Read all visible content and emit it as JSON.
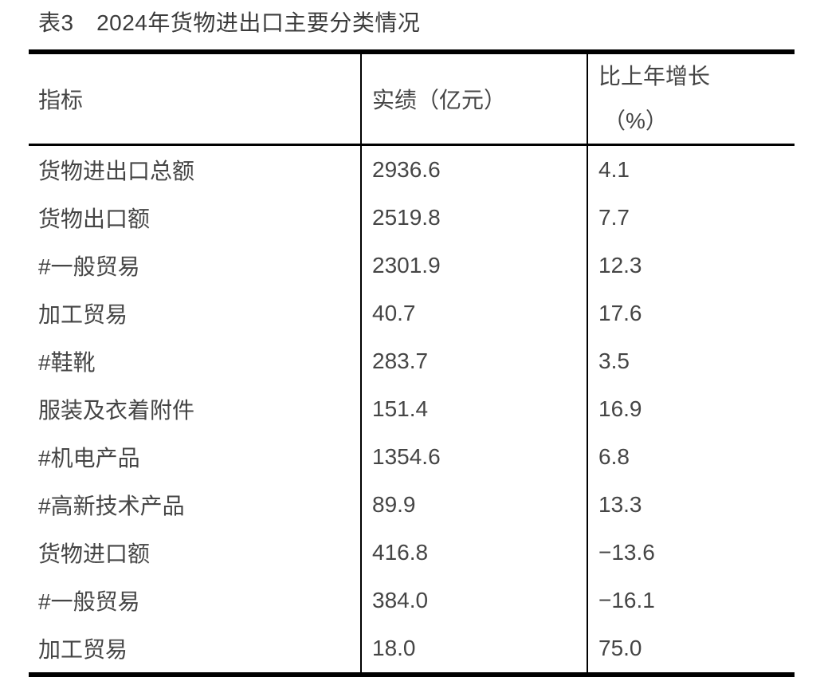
{
  "title": "表3　2024年货物进出口主要分类情况",
  "table": {
    "columns": {
      "indicator": "指标",
      "value": "实绩（亿元）",
      "growth_line1": "比上年增长",
      "growth_line2": "（%）"
    },
    "rows": [
      {
        "indicator": "货物进出口总额",
        "value": "2936.6",
        "growth": "4.1"
      },
      {
        "indicator": "货物出口额",
        "value": "2519.8",
        "growth": "7.7"
      },
      {
        "indicator": "#一般贸易",
        "value": "2301.9",
        "growth": "12.3"
      },
      {
        "indicator": "加工贸易",
        "value": "40.7",
        "growth": "17.6"
      },
      {
        "indicator": "#鞋靴",
        "value": "283.7",
        "growth": "3.5"
      },
      {
        "indicator": "服装及衣着附件",
        "value": "151.4",
        "growth": "16.9"
      },
      {
        "indicator": "#机电产品",
        "value": "1354.6",
        "growth": "6.8"
      },
      {
        "indicator": "#高新技术产品",
        "value": "89.9",
        "growth": "13.3"
      },
      {
        "indicator": "货物进口额",
        "value": "416.8",
        "growth": "−13.6"
      },
      {
        "indicator": "#一般贸易",
        "value": "384.0",
        "growth": "−16.1"
      },
      {
        "indicator": "加工贸易",
        "value": "18.0",
        "growth": "75.0"
      }
    ]
  },
  "colors": {
    "background": "#ffffff",
    "border": "#000000",
    "text": "#454545",
    "title_text": "#3b3b3b"
  }
}
